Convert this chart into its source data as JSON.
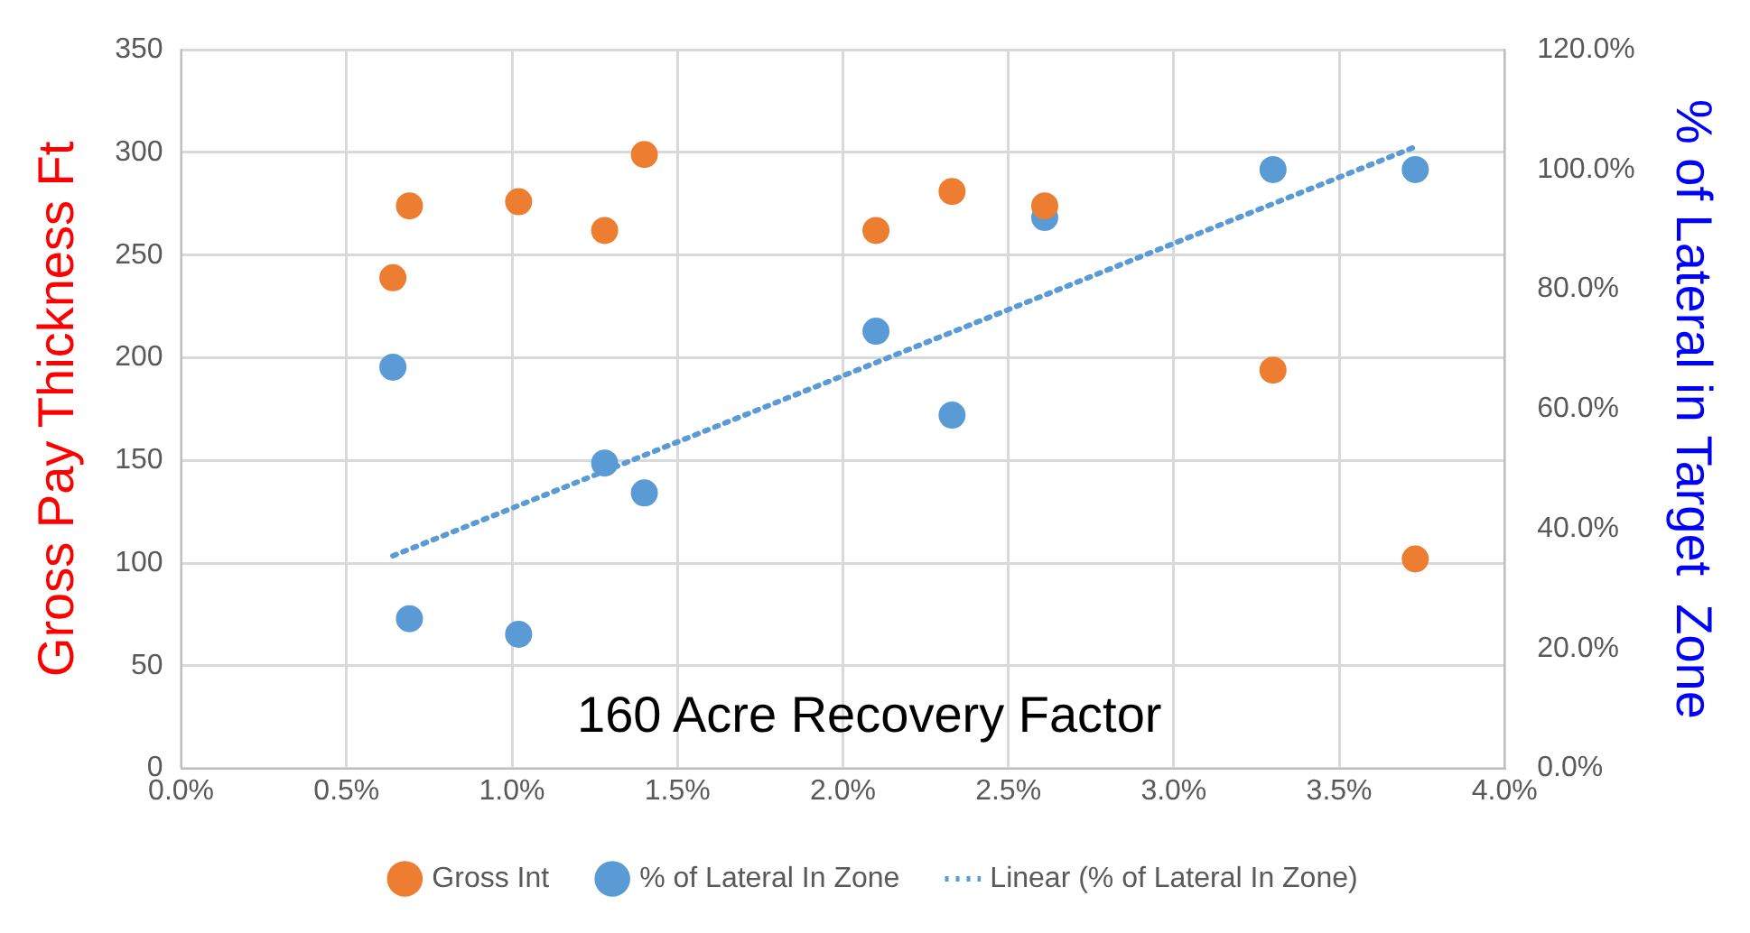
{
  "chart_data": {
    "type": "scatter",
    "title": "160 Acre Recovery Factor",
    "ylabel": "Gross Pay Thickness Ft",
    "y2label": "% of Lateral in Target  Zone",
    "xlim": [
      0,
      4
    ],
    "xticks": [
      {
        "value": 0,
        "label": "0.0%"
      },
      {
        "value": 0.5,
        "label": "0.5%"
      },
      {
        "value": 1,
        "label": "1.0%"
      },
      {
        "value": 1.5,
        "label": "1.5%"
      },
      {
        "value": 2,
        "label": "2.0%"
      },
      {
        "value": 2.5,
        "label": "2.5%"
      },
      {
        "value": 3,
        "label": "3.0%"
      },
      {
        "value": 3.5,
        "label": "3.5%"
      },
      {
        "value": 4,
        "label": "4.0%"
      }
    ],
    "ylim": [
      0,
      350
    ],
    "yticks": [
      0,
      50,
      100,
      150,
      200,
      250,
      300,
      350
    ],
    "y2lim": [
      0,
      120
    ],
    "y2ticks": [
      {
        "value": 0,
        "label": "0.0%"
      },
      {
        "value": 20,
        "label": "20.0%"
      },
      {
        "value": 40,
        "label": "40.0%"
      },
      {
        "value": 60,
        "label": "60.0%"
      },
      {
        "value": 80,
        "label": "80.0%"
      },
      {
        "value": 100,
        "label": "100.0%"
      },
      {
        "value": 120,
        "label": "120.0%"
      }
    ],
    "grid": true,
    "legend": "bottom",
    "marker": "circle",
    "series": [
      {
        "name": "Gross Int",
        "axis": "y",
        "color": "#ed7d31",
        "x": [
          0.64,
          0.69,
          1.02,
          1.28,
          1.4,
          2.1,
          2.33,
          2.61,
          3.3,
          3.73
        ],
        "values": [
          239,
          274,
          276,
          262,
          299,
          262,
          281,
          274,
          194,
          102
        ]
      },
      {
        "name": "% of Lateral In Zone",
        "axis": "y2",
        "color": "#5b9bd5",
        "x": [
          0.64,
          0.69,
          1.02,
          1.28,
          1.4,
          2.1,
          2.33,
          2.61,
          3.3,
          3.73
        ],
        "values": [
          67,
          25,
          22.4,
          51,
          46,
          73,
          59,
          92,
          100,
          100
        ]
      },
      {
        "name": "Linear (% of Lateral In Zone)",
        "type": "line",
        "axis": "y2",
        "color": "#5b9bd5",
        "line_style": "dotted",
        "marker": "none",
        "x": [
          0.64,
          3.73
        ],
        "values": [
          35.5,
          103.8
        ]
      }
    ]
  }
}
